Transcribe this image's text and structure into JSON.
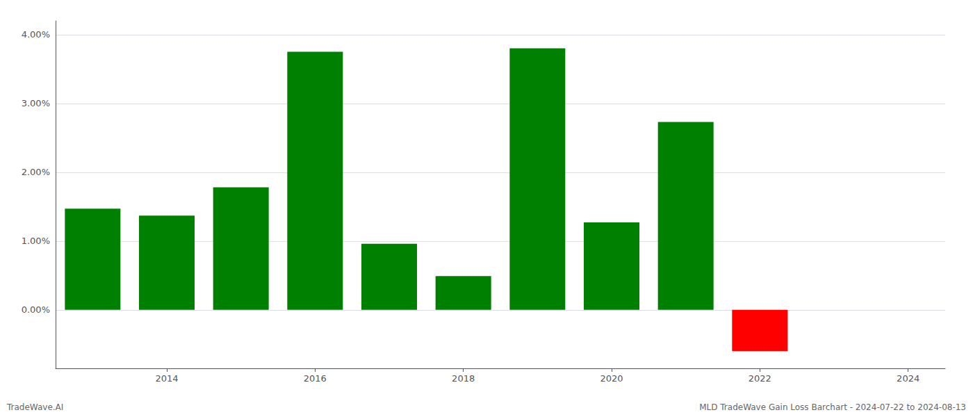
{
  "chart_data": {
    "type": "bar",
    "x": [
      2013,
      2014,
      2015,
      2016,
      2017,
      2018,
      2019,
      2020,
      2021,
      2022
    ],
    "values": [
      0.0147,
      0.0137,
      0.0178,
      0.0375,
      0.0096,
      0.0049,
      0.038,
      0.0127,
      0.0273,
      -0.006
    ],
    "colors": [
      "#008000",
      "#008000",
      "#008000",
      "#008000",
      "#008000",
      "#008000",
      "#008000",
      "#008000",
      "#008000",
      "#ff0000"
    ],
    "xlim": [
      2012.5,
      2024.5
    ],
    "xticks": [
      2014,
      2016,
      2018,
      2020,
      2022,
      2024
    ],
    "ylim": [
      -0.0085,
      0.042
    ],
    "yticks": [
      {
        "value": 0.0,
        "label": "0.00%"
      },
      {
        "value": 0.01,
        "label": "1.00%"
      },
      {
        "value": 0.02,
        "label": "2.00%"
      },
      {
        "value": 0.03,
        "label": "3.00%"
      },
      {
        "value": 0.04,
        "label": "4.00%"
      }
    ],
    "grid": true,
    "annotations": [
      "TradeWave.AI",
      "MLD TradeWave Gain Loss Barchart - 2024-07-22 to 2024-08-13"
    ]
  }
}
